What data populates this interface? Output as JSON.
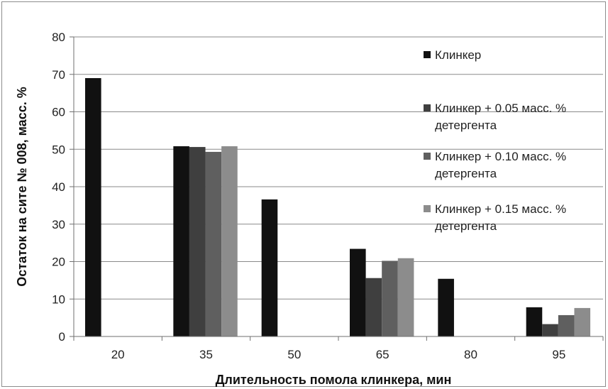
{
  "chart_data": {
    "type": "bar",
    "title": "",
    "xlabel": "Длительность помола клинкера, мин",
    "ylabel": "Остаток на сите № 008, масс. %",
    "categories": [
      "20",
      "35",
      "50",
      "65",
      "80",
      "95"
    ],
    "ylim": [
      0,
      80
    ],
    "yticks": [
      "0",
      "10",
      "20",
      "30",
      "40",
      "50",
      "60",
      "70",
      "80"
    ],
    "grid": true,
    "legend_position": "right",
    "series": [
      {
        "name": "Клинкер",
        "lines": [
          "Клинкер"
        ],
        "color": "#111111",
        "values": [
          69,
          50.8,
          36.6,
          23.4,
          15.4,
          7.8
        ]
      },
      {
        "name": "Клинкер + 0.05 масс. % детергента",
        "lines": [
          "Клинкер + 0.05 масс. %",
          "детергента"
        ],
        "color": "#3f3f3f",
        "values": [
          null,
          50.6,
          null,
          15.6,
          null,
          3.3
        ]
      },
      {
        "name": "Клинкер + 0.10 масс. % детергента",
        "lines": [
          "Клинкер + 0.10 масс. %",
          "детергента"
        ],
        "color": "#5f5f5f",
        "values": [
          null,
          49.3,
          null,
          20.2,
          null,
          5.7
        ]
      },
      {
        "name": "Клинкер + 0.15 масс. % детергента",
        "lines": [
          "Клинкер + 0.15 масс. %",
          "детергента"
        ],
        "color": "#8c8c8c",
        "values": [
          null,
          50.8,
          null,
          20.9,
          null,
          7.6
        ]
      }
    ]
  }
}
